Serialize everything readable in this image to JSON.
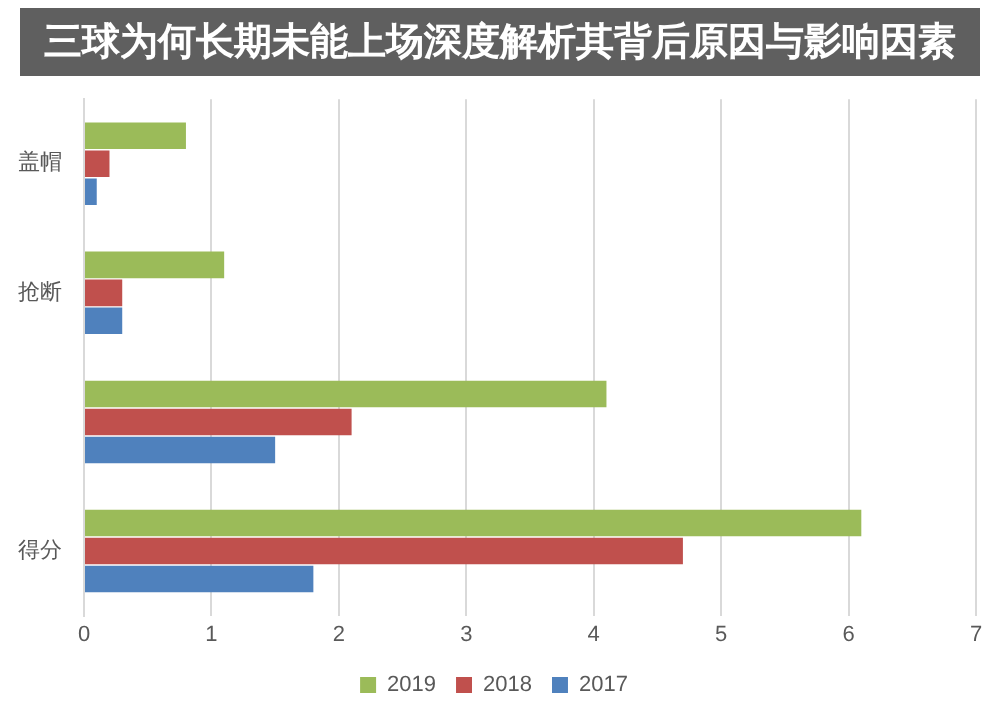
{
  "chart_data": {
    "type": "bar",
    "orientation": "horizontal",
    "title": "三球为何长期未能上场深度解析其背后原因与影响因素",
    "categories": [
      "盖帽",
      "抢断",
      null,
      "得分"
    ],
    "series": [
      {
        "name": "2019",
        "color": "#9bbb59",
        "values": [
          0.8,
          1.1,
          4.1,
          6.1
        ]
      },
      {
        "name": "2018",
        "color": "#c0504d",
        "values": [
          0.2,
          0.3,
          2.1,
          4.7
        ]
      },
      {
        "name": "2017",
        "color": "#4f81bd",
        "values": [
          0.1,
          0.3,
          1.5,
          1.8
        ]
      }
    ],
    "xlim": [
      0,
      7
    ],
    "xticks": [
      0,
      1,
      2,
      3,
      4,
      5,
      6,
      7
    ],
    "grid": "x",
    "legend": "bottom"
  }
}
